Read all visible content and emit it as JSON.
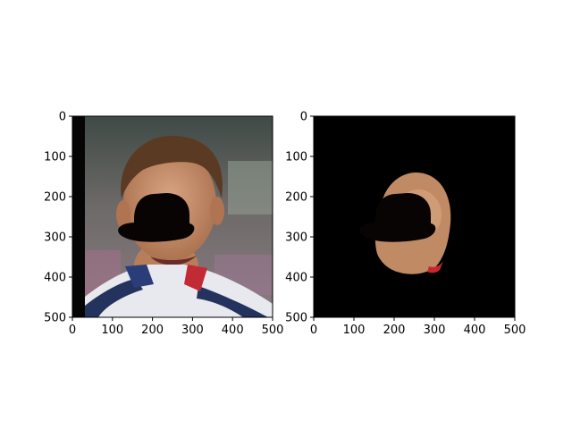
{
  "chart_data": [
    {
      "type": "image",
      "panel": "left",
      "content": "photo",
      "xlim": [
        0,
        500
      ],
      "ylim": [
        500,
        0
      ],
      "xticks": [
        0,
        100,
        200,
        300,
        400,
        500
      ],
      "yticks": [
        0,
        100,
        200,
        300,
        400,
        500
      ],
      "xtick_labels": [
        "0",
        "100",
        "200",
        "300",
        "400",
        "500"
      ],
      "ytick_labels": [
        "0",
        "100",
        "200",
        "300",
        "400",
        "500"
      ],
      "title": "",
      "xlabel": "",
      "ylabel": "",
      "grid": false
    },
    {
      "type": "image",
      "panel": "right",
      "content": "masked-face-on-black",
      "xlim": [
        0,
        500
      ],
      "ylim": [
        500,
        0
      ],
      "xticks": [
        0,
        100,
        200,
        300,
        400,
        500
      ],
      "yticks": [
        0,
        100,
        200,
        300,
        400,
        500
      ],
      "xtick_labels": [
        "0",
        "100",
        "200",
        "300",
        "400",
        "500"
      ],
      "ytick_labels": [
        "0",
        "100",
        "200",
        "300",
        "400",
        "500"
      ],
      "title": "",
      "xlabel": "",
      "ylabel": "",
      "grid": false
    }
  ],
  "colors": {
    "background": "#ffffff",
    "mask": "#080404",
    "black": "#000000",
    "skin": "#c8946e",
    "hair": "#5a3a22"
  }
}
